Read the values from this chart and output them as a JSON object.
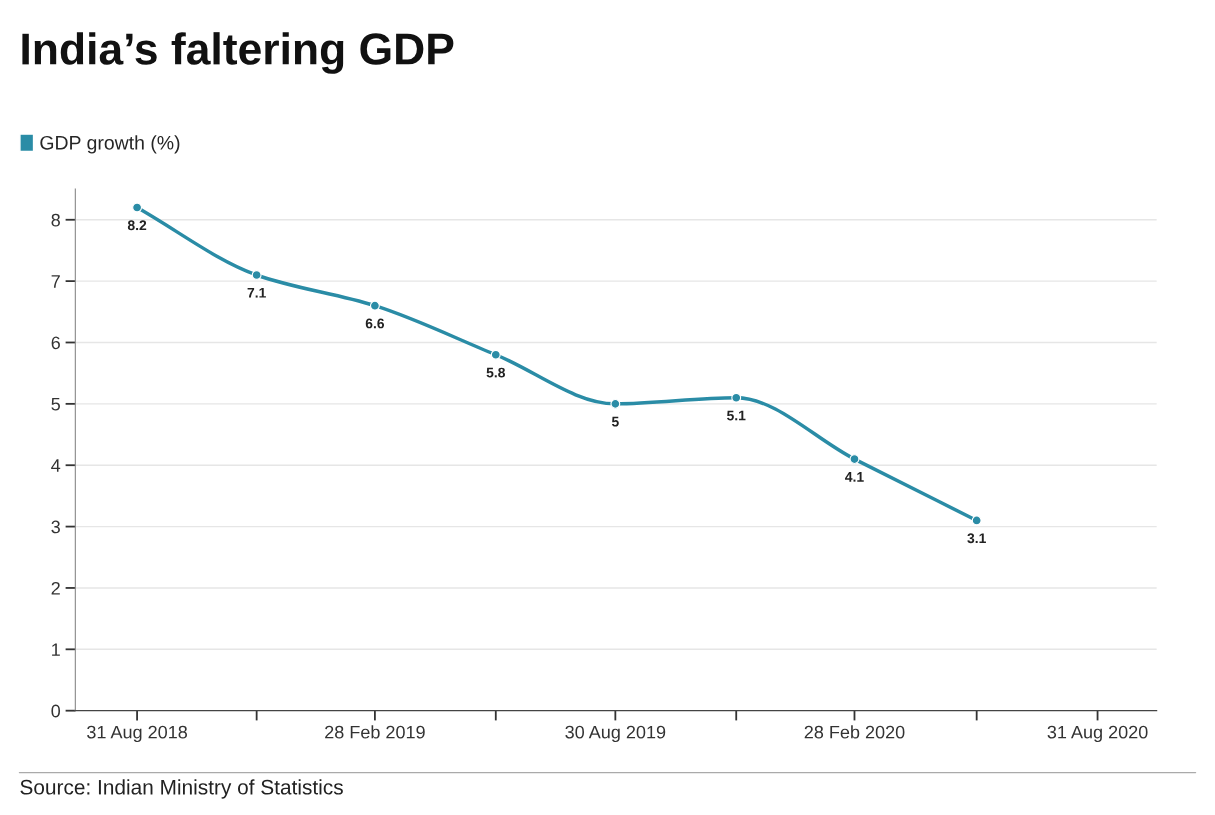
{
  "chart_data": {
    "type": "line",
    "title": "India’s faltering GDP",
    "x": [
      "2018-08-31",
      "2018-11-30",
      "2019-02-28",
      "2019-05-31",
      "2019-08-30",
      "2019-11-30",
      "2020-02-28",
      "2020-05-31"
    ],
    "series": [
      {
        "name": "GDP growth (%)",
        "color": "#2a8ca6",
        "values": [
          8.2,
          7.1,
          6.6,
          5.8,
          5,
          5.1,
          4.1,
          3.1
        ]
      }
    ],
    "xlim": [
      "2018-07-15",
      "2020-10-15"
    ],
    "xticks": [
      {
        "value": "2018-08-31",
        "label": "31 Aug 2018"
      },
      {
        "value": "2018-11-30",
        "label": null
      },
      {
        "value": "2019-02-28",
        "label": "28 Feb 2019"
      },
      {
        "value": "2019-05-31",
        "label": null
      },
      {
        "value": "2019-08-30",
        "label": "30 Aug 2019"
      },
      {
        "value": "2019-11-30",
        "label": null
      },
      {
        "value": "2020-02-28",
        "label": "28 Feb 2020"
      },
      {
        "value": "2020-05-31",
        "label": null
      },
      {
        "value": "2020-08-31",
        "label": "31 Aug 2020"
      }
    ],
    "ylim": [
      0,
      8.5
    ],
    "yticks": [
      0,
      1,
      2,
      3,
      4,
      5,
      6,
      7,
      8
    ],
    "grid": "y",
    "legend": "top left",
    "marker": "circle",
    "line_style": "solid",
    "data_labels": true,
    "annotations": [
      "Source: Indian Ministry of Statistics"
    ]
  }
}
